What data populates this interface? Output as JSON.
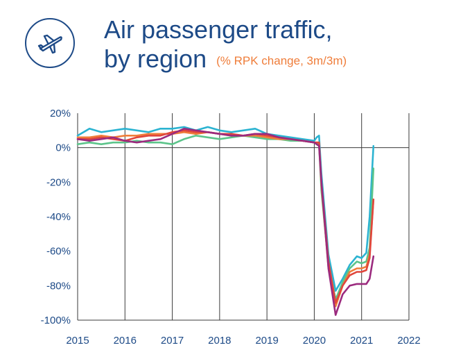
{
  "header": {
    "title_line1": "Air passenger traffic,",
    "title_line2": "by region",
    "subtitle": "(% RPK change, 3m/3m)",
    "icon": "airplane-icon",
    "title_color": "#1d4a87",
    "subtitle_color": "#ef7d3a"
  },
  "chart_data": {
    "type": "line",
    "title": "Air passenger traffic, by region",
    "subtitle": "(% RPK change, 3m/3m)",
    "xlabel": "",
    "ylabel": "",
    "xlim": [
      2015,
      2022
    ],
    "ylim": [
      -100,
      20
    ],
    "x_ticks": [
      "2015",
      "2016",
      "2017",
      "2018",
      "2019",
      "2020",
      "2021",
      "2022"
    ],
    "y_ticks": [
      "20%",
      "0%",
      "-20%",
      "-40%",
      "-60%",
      "-80%",
      "-100%"
    ],
    "y_tick_values": [
      20,
      0,
      -20,
      -40,
      -60,
      -80,
      -100
    ],
    "grid": "vertical lines at each year",
    "legend": "none",
    "series": [
      {
        "color": "#2bb3d1",
        "points": [
          [
            2015.0,
            7
          ],
          [
            2015.25,
            11
          ],
          [
            2015.5,
            9
          ],
          [
            2015.75,
            10
          ],
          [
            2016.0,
            11
          ],
          [
            2016.25,
            10
          ],
          [
            2016.5,
            9
          ],
          [
            2016.75,
            11
          ],
          [
            2017.0,
            11
          ],
          [
            2017.25,
            12
          ],
          [
            2017.5,
            10
          ],
          [
            2017.75,
            12
          ],
          [
            2018.0,
            10
          ],
          [
            2018.25,
            9
          ],
          [
            2018.5,
            10
          ],
          [
            2018.75,
            11
          ],
          [
            2019.0,
            8
          ],
          [
            2019.25,
            7
          ],
          [
            2019.5,
            6
          ],
          [
            2019.75,
            5
          ],
          [
            2020.0,
            4
          ],
          [
            2020.05,
            6
          ],
          [
            2020.1,
            7
          ],
          [
            2020.15,
            -15
          ],
          [
            2020.3,
            -62
          ],
          [
            2020.45,
            -83
          ],
          [
            2020.6,
            -76
          ],
          [
            2020.75,
            -68
          ],
          [
            2020.9,
            -63
          ],
          [
            2021.0,
            -64
          ],
          [
            2021.1,
            -61
          ],
          [
            2021.17,
            -40
          ],
          [
            2021.25,
            1
          ]
        ]
      },
      {
        "color": "#5cc48a",
        "points": [
          [
            2015.0,
            2
          ],
          [
            2015.25,
            3
          ],
          [
            2015.5,
            2
          ],
          [
            2015.75,
            3
          ],
          [
            2016.0,
            3
          ],
          [
            2016.25,
            4
          ],
          [
            2016.5,
            3
          ],
          [
            2016.75,
            3
          ],
          [
            2017.0,
            2
          ],
          [
            2017.25,
            5
          ],
          [
            2017.5,
            7
          ],
          [
            2017.75,
            6
          ],
          [
            2018.0,
            5
          ],
          [
            2018.25,
            6
          ],
          [
            2018.5,
            7
          ],
          [
            2018.75,
            6
          ],
          [
            2019.0,
            5
          ],
          [
            2019.25,
            5
          ],
          [
            2019.5,
            4
          ],
          [
            2019.75,
            4
          ],
          [
            2020.0,
            3
          ],
          [
            2020.05,
            2
          ],
          [
            2020.1,
            2
          ],
          [
            2020.15,
            -25
          ],
          [
            2020.3,
            -68
          ],
          [
            2020.45,
            -88
          ],
          [
            2020.6,
            -78
          ],
          [
            2020.75,
            -70
          ],
          [
            2020.9,
            -66
          ],
          [
            2021.0,
            -67
          ],
          [
            2021.1,
            -66
          ],
          [
            2021.17,
            -58
          ],
          [
            2021.25,
            -12
          ]
        ]
      },
      {
        "color": "#ef7d3a",
        "points": [
          [
            2015.0,
            6
          ],
          [
            2015.25,
            6
          ],
          [
            2015.5,
            7
          ],
          [
            2015.75,
            6
          ],
          [
            2016.0,
            7
          ],
          [
            2016.25,
            7
          ],
          [
            2016.5,
            8
          ],
          [
            2016.75,
            8
          ],
          [
            2017.0,
            8
          ],
          [
            2017.25,
            9
          ],
          [
            2017.5,
            8
          ],
          [
            2017.75,
            9
          ],
          [
            2018.0,
            8
          ],
          [
            2018.25,
            7
          ],
          [
            2018.5,
            7
          ],
          [
            2018.75,
            7
          ],
          [
            2019.0,
            6
          ],
          [
            2019.25,
            5
          ],
          [
            2019.5,
            5
          ],
          [
            2019.75,
            4
          ],
          [
            2020.0,
            3
          ],
          [
            2020.05,
            3
          ],
          [
            2020.1,
            3
          ],
          [
            2020.15,
            -22
          ],
          [
            2020.3,
            -70
          ],
          [
            2020.45,
            -92
          ],
          [
            2020.6,
            -80
          ],
          [
            2020.75,
            -72
          ],
          [
            2020.9,
            -70
          ],
          [
            2021.0,
            -70
          ],
          [
            2021.1,
            -69
          ],
          [
            2021.17,
            -62
          ],
          [
            2021.25,
            -30
          ]
        ]
      },
      {
        "color": "#e0463c",
        "points": [
          [
            2015.0,
            5
          ],
          [
            2015.25,
            5
          ],
          [
            2015.5,
            6
          ],
          [
            2015.75,
            5
          ],
          [
            2016.0,
            4
          ],
          [
            2016.25,
            6
          ],
          [
            2016.5,
            7
          ],
          [
            2016.75,
            7
          ],
          [
            2017.0,
            9
          ],
          [
            2017.25,
            10
          ],
          [
            2017.5,
            9
          ],
          [
            2017.75,
            9
          ],
          [
            2018.0,
            8
          ],
          [
            2018.25,
            8
          ],
          [
            2018.5,
            7
          ],
          [
            2018.75,
            8
          ],
          [
            2019.0,
            7
          ],
          [
            2019.25,
            6
          ],
          [
            2019.5,
            5
          ],
          [
            2019.75,
            4
          ],
          [
            2020.0,
            3
          ],
          [
            2020.05,
            3
          ],
          [
            2020.1,
            3
          ],
          [
            2020.15,
            -20
          ],
          [
            2020.3,
            -66
          ],
          [
            2020.45,
            -90
          ],
          [
            2020.6,
            -80
          ],
          [
            2020.75,
            -74
          ],
          [
            2020.9,
            -72
          ],
          [
            2021.0,
            -72
          ],
          [
            2021.1,
            -71
          ],
          [
            2021.17,
            -64
          ],
          [
            2021.25,
            -30
          ]
        ]
      },
      {
        "color": "#9b2a7e",
        "points": [
          [
            2015.0,
            5
          ],
          [
            2015.25,
            4
          ],
          [
            2015.5,
            5
          ],
          [
            2015.75,
            6
          ],
          [
            2016.0,
            4
          ],
          [
            2016.25,
            3
          ],
          [
            2016.5,
            4
          ],
          [
            2016.75,
            5
          ],
          [
            2017.0,
            8
          ],
          [
            2017.25,
            11
          ],
          [
            2017.5,
            10
          ],
          [
            2017.75,
            9
          ],
          [
            2018.0,
            8
          ],
          [
            2018.25,
            7
          ],
          [
            2018.5,
            7
          ],
          [
            2018.75,
            8
          ],
          [
            2019.0,
            8
          ],
          [
            2019.25,
            6
          ],
          [
            2019.5,
            5
          ],
          [
            2019.75,
            4
          ],
          [
            2020.0,
            3
          ],
          [
            2020.05,
            2
          ],
          [
            2020.1,
            1
          ],
          [
            2020.15,
            -20
          ],
          [
            2020.3,
            -70
          ],
          [
            2020.45,
            -97
          ],
          [
            2020.6,
            -85
          ],
          [
            2020.75,
            -80
          ],
          [
            2020.9,
            -79
          ],
          [
            2021.0,
            -79
          ],
          [
            2021.1,
            -79
          ],
          [
            2021.17,
            -76
          ],
          [
            2021.25,
            -63
          ]
        ]
      }
    ]
  }
}
